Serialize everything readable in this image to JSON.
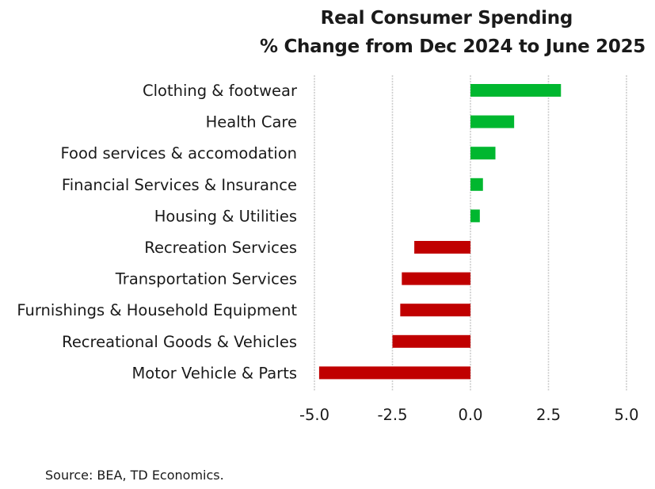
{
  "chart_data": {
    "type": "bar",
    "orientation": "horizontal",
    "title_line1": "Real Consumer Spending",
    "title_line2": "% Change from Dec 2024 to June 2025",
    "categories": [
      "Clothing & footwear",
      "Health Care",
      "Food services & accomodation",
      "Financial Services & Insurance",
      "Housing & Utilities",
      "Recreation Services",
      "Transportation Services",
      "Furnishings & Household Equipment",
      "Recreational Goods & Vehicles",
      "Motor Vehicle & Parts"
    ],
    "values": [
      2.9,
      1.4,
      0.8,
      0.4,
      0.3,
      -1.8,
      -2.2,
      -2.25,
      -2.5,
      -4.85
    ],
    "xlim": [
      -5.0,
      5.0
    ],
    "xticks": [
      -5.0,
      -2.5,
      0.0,
      2.5,
      5.0
    ],
    "xtick_labels": [
      "-5.0",
      "-2.5",
      "0.0",
      "2.5",
      "5.0"
    ],
    "gridlines": true,
    "colors": {
      "positive": "#00b72f",
      "negative": "#c00000",
      "grid": "#cccccc"
    }
  },
  "source": "Source: BEA, TD Economics."
}
